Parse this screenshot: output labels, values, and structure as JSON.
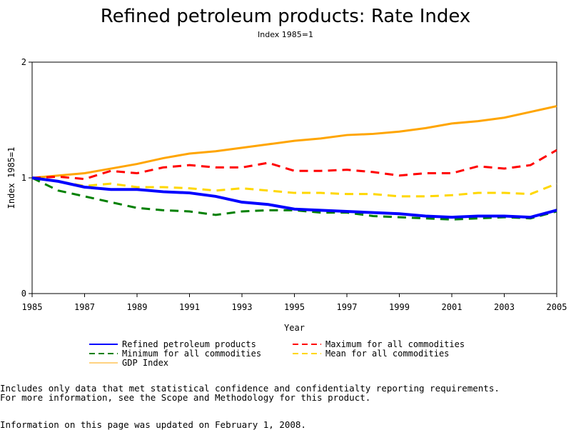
{
  "chart_data": {
    "type": "line",
    "title": "Refined petroleum products: Rate Index",
    "subtitle": "Index 1985=1",
    "xlabel": "Year",
    "ylabel": "Index 1985=1",
    "xlim": [
      1985,
      2005
    ],
    "ylim": [
      0,
      2
    ],
    "xticks": [
      "1985",
      "1987",
      "1989",
      "1991",
      "1993",
      "1995",
      "1997",
      "1999",
      "2001",
      "2003",
      "2005"
    ],
    "yticks": [
      "0",
      "1",
      "2"
    ],
    "grid": false,
    "legend_position": "bottom",
    "x": [
      1985,
      1986,
      1987,
      1988,
      1989,
      1990,
      1991,
      1992,
      1993,
      1994,
      1995,
      1996,
      1997,
      1998,
      1999,
      2000,
      2001,
      2002,
      2003,
      2004,
      2005
    ],
    "series": [
      {
        "name": "Refined petroleum products",
        "color": "#0000ff",
        "dash": "solid",
        "values": [
          1,
          0.97,
          0.92,
          0.9,
          0.9,
          0.88,
          0.87,
          0.84,
          0.79,
          0.77,
          0.73,
          0.72,
          0.71,
          0.7,
          0.69,
          0.67,
          0.66,
          0.67,
          0.67,
          0.66,
          0.72
        ]
      },
      {
        "name": "Maximum for all commodities",
        "color": "#ff0000",
        "dash": "dashed",
        "values": [
          1,
          1.01,
          0.99,
          1.06,
          1.04,
          1.09,
          1.11,
          1.09,
          1.09,
          1.13,
          1.06,
          1.06,
          1.07,
          1.05,
          1.02,
          1.04,
          1.04,
          1.1,
          1.08,
          1.11,
          1.24
        ]
      },
      {
        "name": "Minimum for all commodities",
        "color": "#008000",
        "dash": "dashed",
        "values": [
          1,
          0.89,
          0.84,
          0.79,
          0.74,
          0.72,
          0.71,
          0.68,
          0.71,
          0.72,
          0.72,
          0.7,
          0.7,
          0.67,
          0.66,
          0.65,
          0.64,
          0.65,
          0.66,
          0.65,
          0.71
        ]
      },
      {
        "name": "Mean for all commodities",
        "color": "#ffd700",
        "dash": "dashed",
        "values": [
          1,
          0.97,
          0.93,
          0.95,
          0.92,
          0.92,
          0.91,
          0.89,
          0.91,
          0.89,
          0.87,
          0.87,
          0.86,
          0.86,
          0.84,
          0.84,
          0.85,
          0.87,
          0.87,
          0.86,
          0.95
        ]
      },
      {
        "name": "GDP Index",
        "color": "#ffa500",
        "dash": "solid",
        "values": [
          1,
          1.02,
          1.04,
          1.08,
          1.12,
          1.17,
          1.21,
          1.23,
          1.26,
          1.29,
          1.32,
          1.34,
          1.37,
          1.38,
          1.4,
          1.43,
          1.47,
          1.49,
          1.52,
          1.57,
          1.62
        ]
      }
    ]
  },
  "notes": {
    "line1": "Includes only data that met statistical confidence and confidentialty reporting requirements.",
    "line2": "For more information, see the Scope and Methodology for this product.",
    "updated": "Information on this page was updated on February 1, 2008."
  }
}
